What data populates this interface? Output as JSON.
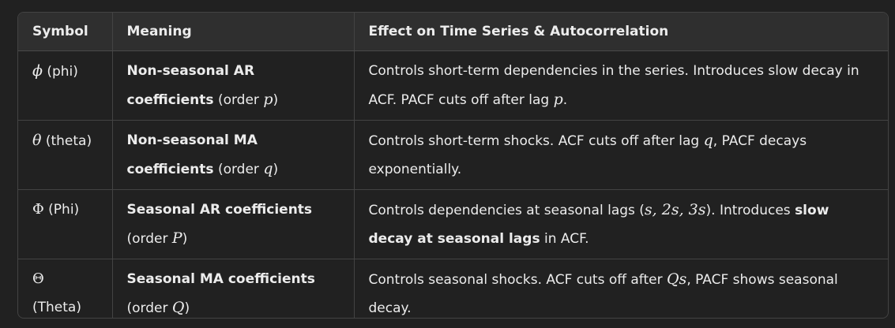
{
  "headers": {
    "symbol": "Symbol",
    "meaning": "Meaning",
    "effect": "Effect on Time Series & Autocorrelation"
  },
  "rows": [
    {
      "sym": "ϕ",
      "sym_name": "(phi)",
      "meaning_bold": "Non-seasonal AR coefficients",
      "meaning_pre": "(order ",
      "meaning_var": "p",
      "meaning_post": ")",
      "effect_a": "Controls short-term dependencies in the series. Introduces slow decay in ACF. PACF cuts off after lag ",
      "effect_var": "p",
      "effect_b": "."
    },
    {
      "sym": "θ",
      "sym_name": "(theta)",
      "meaning_bold": "Non-seasonal MA coefficients",
      "meaning_pre": "(order ",
      "meaning_var": "q",
      "meaning_post": ")",
      "effect_a": "Controls short-term shocks. ACF cuts off after lag ",
      "effect_var": "q",
      "effect_b": ", PACF decays exponentially."
    },
    {
      "sym": "Φ",
      "sym_name": "(Phi)",
      "meaning_bold": "Seasonal AR coefficients",
      "meaning_pre": "(order ",
      "meaning_var": "P",
      "meaning_post": ")",
      "effect_a": "Controls dependencies at seasonal lags (",
      "effect_var": "s, 2s, 3s",
      "effect_b": "). Introduces ",
      "effect_bold": "slow decay at seasonal lags",
      "effect_c": " in ACF."
    },
    {
      "sym": "Θ",
      "sym_name": "(Theta)",
      "meaning_bold": "Seasonal MA coefficients",
      "meaning_pre": "(order ",
      "meaning_var": "Q",
      "meaning_post": ")",
      "effect_a": "Controls seasonal shocks. ACF cuts off after ",
      "effect_var": "Qs",
      "effect_b": ", PACF shows seasonal decay."
    }
  ]
}
